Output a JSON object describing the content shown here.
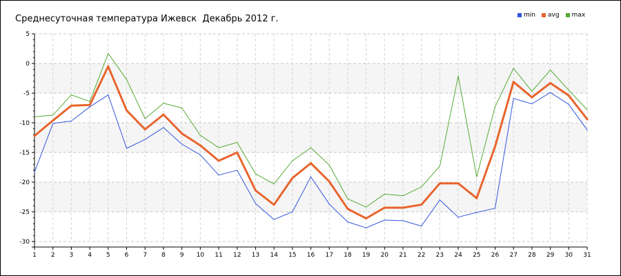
{
  "chart_data": {
    "type": "line",
    "title": "Среднесуточная температура Ижевск  Декабрь 2012 г.",
    "xlabel": "",
    "ylabel": "",
    "x": [
      1,
      2,
      3,
      4,
      5,
      6,
      7,
      8,
      9,
      10,
      11,
      12,
      13,
      14,
      15,
      16,
      17,
      18,
      19,
      20,
      21,
      22,
      23,
      24,
      25,
      26,
      27,
      28,
      29,
      30,
      31
    ],
    "x_tick_labels": [
      "1",
      "2",
      "3",
      "4",
      "5",
      "6",
      "7",
      "8",
      "9",
      "10",
      "11",
      "12",
      "13",
      "14",
      "15",
      "16",
      "17",
      "18",
      "19",
      "20",
      "21",
      "22",
      "23",
      "24",
      "25",
      "26",
      "27",
      "28",
      "29",
      "30",
      "31"
    ],
    "ylim": [
      -30,
      5
    ],
    "y_ticks": [
      5,
      0,
      -5,
      -10,
      -15,
      -20,
      -25,
      -30
    ],
    "y_tick_labels": [
      "5",
      "0",
      "-5",
      "-10",
      "-15",
      "-20",
      "-25",
      "-30"
    ],
    "grid": true,
    "legend_position": "top-right",
    "series": [
      {
        "name": "min",
        "color": "#3355dd",
        "values": [
          -18.3,
          -10.1,
          -9.7,
          -7.3,
          -5.3,
          -14.3,
          -12.8,
          -10.8,
          -13.6,
          -15.4,
          -18.8,
          -18.0,
          -23.6,
          -26.3,
          -25.0,
          -19.1,
          -23.7,
          -26.7,
          -27.7,
          -26.4,
          -26.5,
          -27.4,
          -23.0,
          -25.9,
          -25.1,
          -24.4,
          -5.9,
          -6.8,
          -4.9,
          -6.9,
          -11.2
        ]
      },
      {
        "name": "avg",
        "color": "#e8642d",
        "values": [
          -12.2,
          -9.6,
          -7.1,
          -7.0,
          -0.5,
          -7.9,
          -11.1,
          -8.6,
          -11.8,
          -13.8,
          -16.4,
          -15.0,
          -21.4,
          -23.8,
          -19.3,
          -16.8,
          -19.9,
          -24.5,
          -26.1,
          -24.3,
          -24.3,
          -23.8,
          -20.2,
          -20.2,
          -22.7,
          -14.0,
          -3.1,
          -5.7,
          -3.3,
          -5.4,
          -9.4
        ]
      },
      {
        "name": "max",
        "color": "#55aa33",
        "values": [
          -9.0,
          -8.7,
          -5.3,
          -6.4,
          1.7,
          -2.7,
          -9.3,
          -6.7,
          -7.5,
          -12.1,
          -14.2,
          -13.3,
          -18.6,
          -20.3,
          -16.4,
          -14.2,
          -17.1,
          -22.8,
          -24.2,
          -22.0,
          -22.3,
          -20.8,
          -17.3,
          -2.1,
          -19.1,
          -7.3,
          -0.8,
          -4.7,
          -1.1,
          -4.5,
          -7.8
        ]
      }
    ]
  }
}
